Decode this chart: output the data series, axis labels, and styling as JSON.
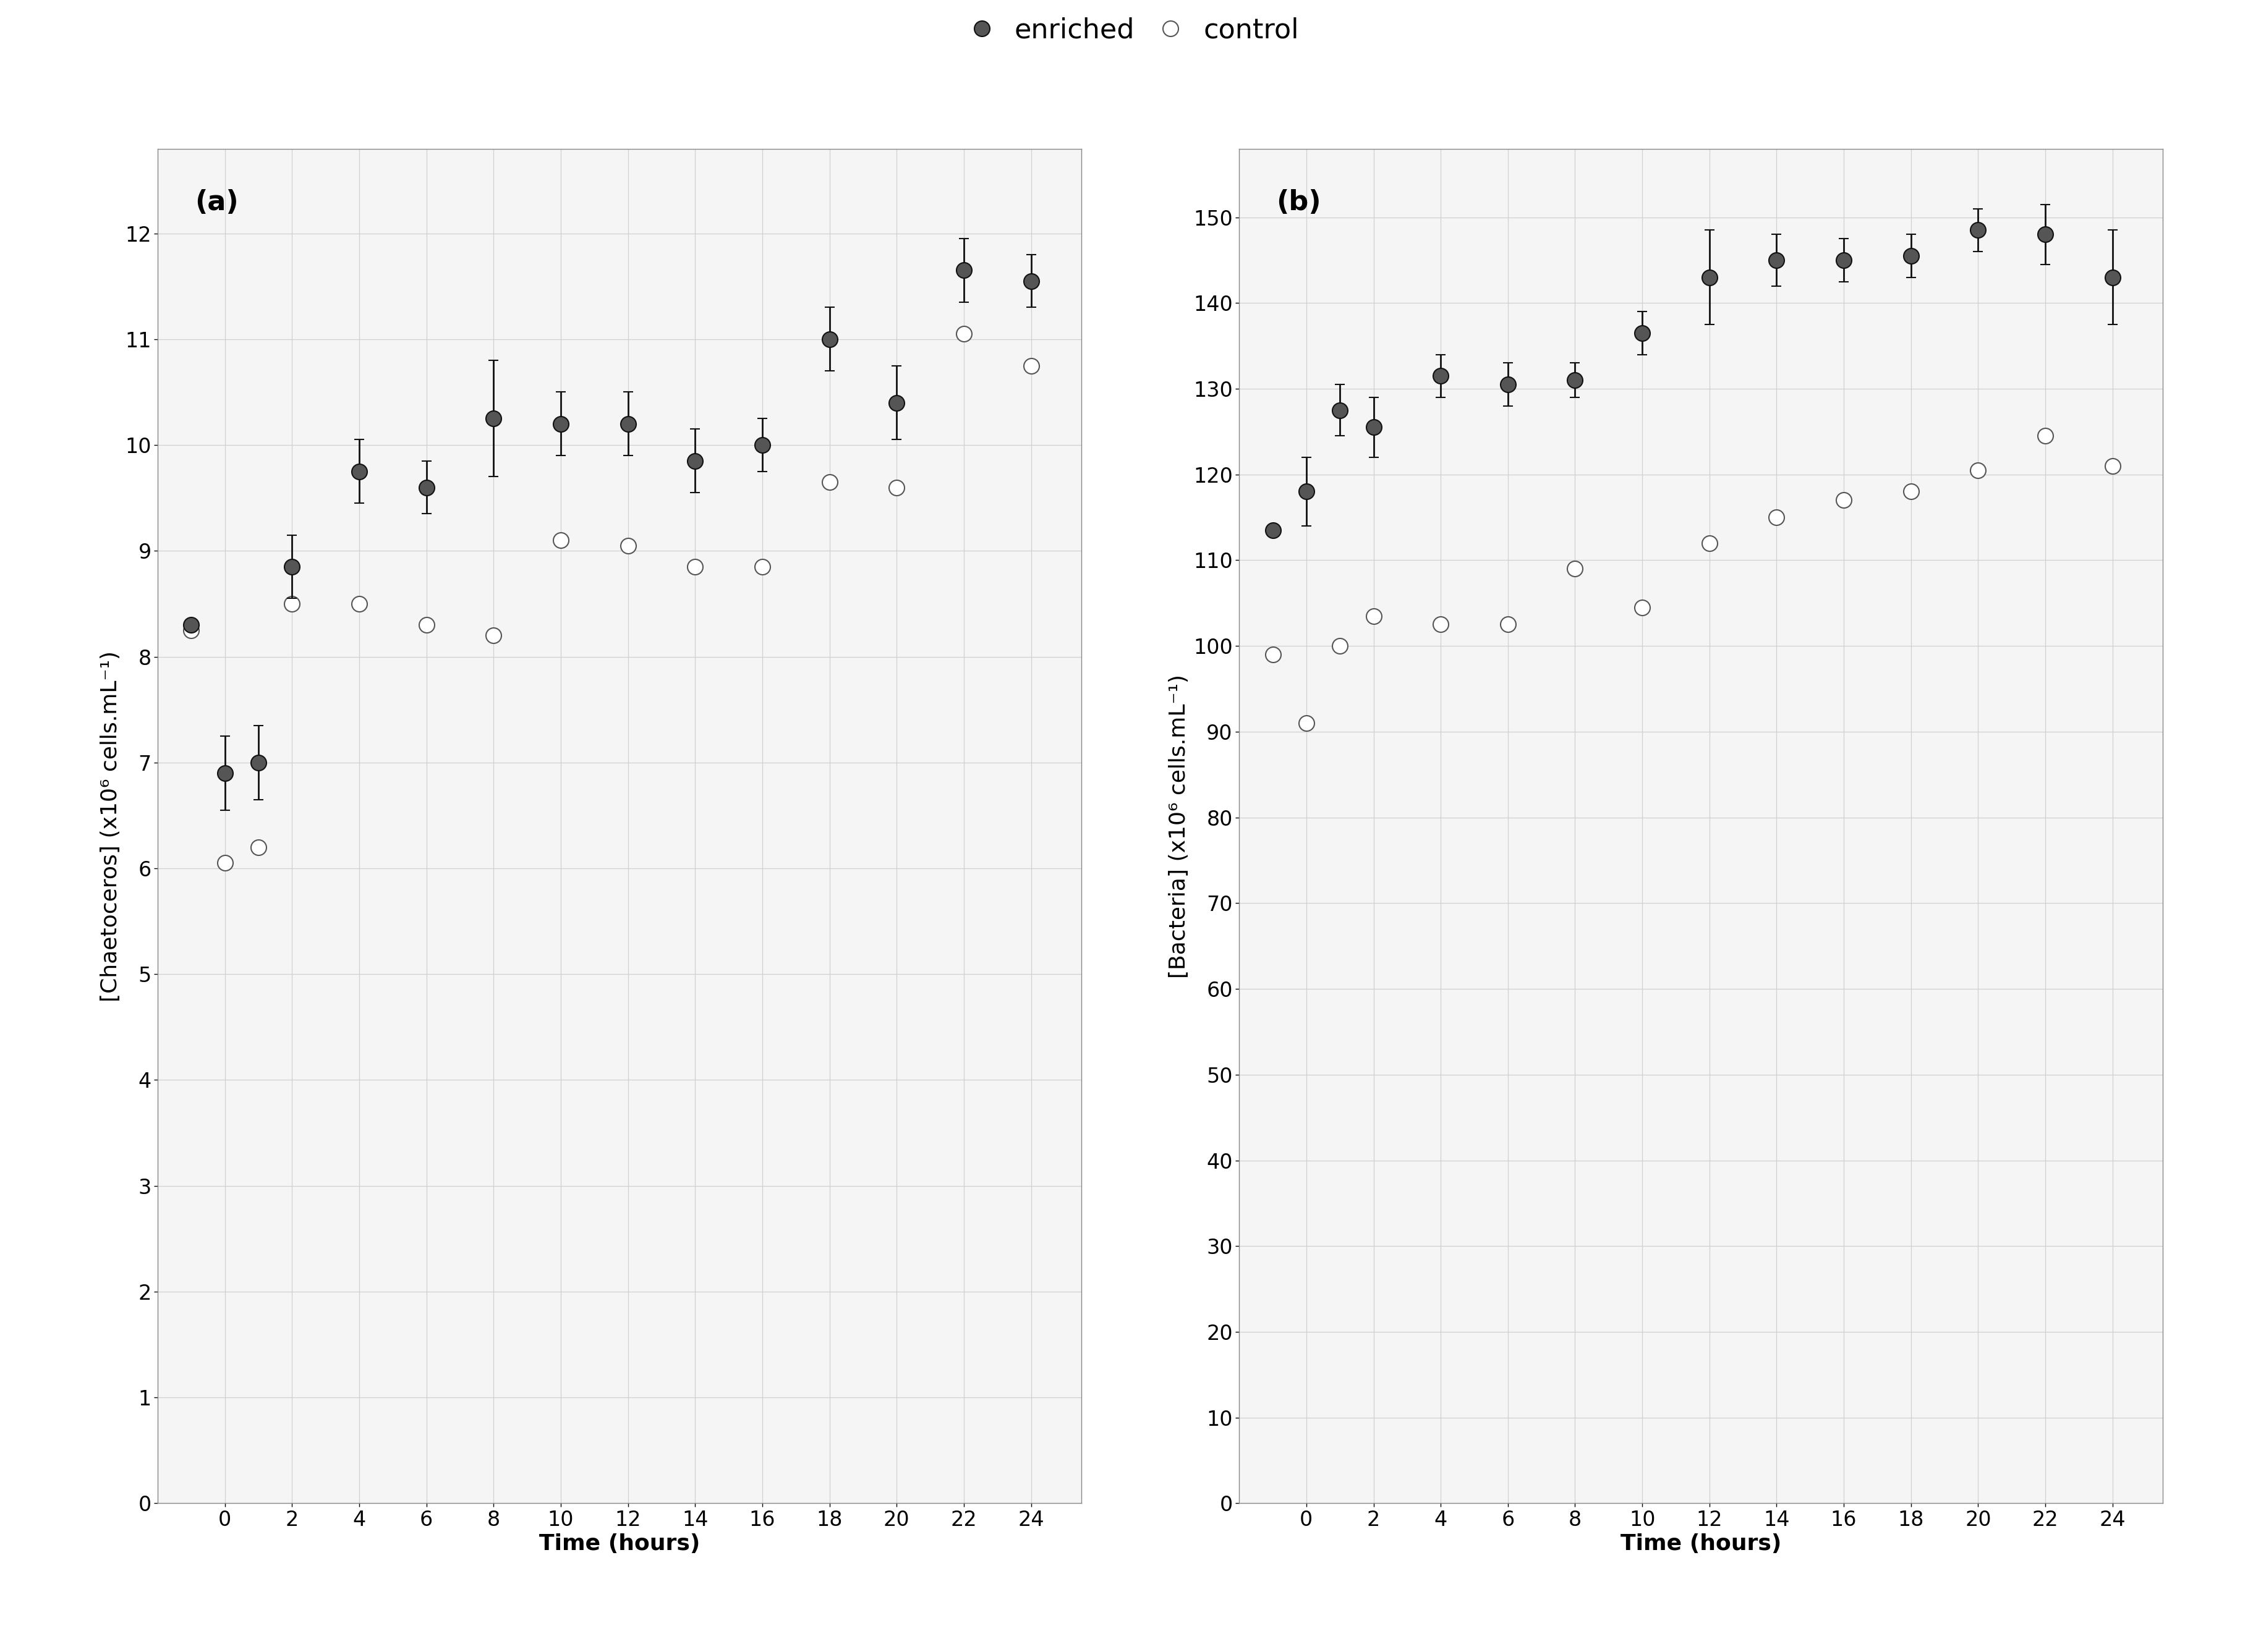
{
  "panel_a": {
    "title": "(a)",
    "ylabel": "[Chaetoceros] (x10⁶ cells.mL⁻¹)",
    "xlabel": "Time (hours)",
    "ylim": [
      0,
      12.8
    ],
    "yticks": [
      0,
      1,
      2,
      3,
      4,
      5,
      6,
      7,
      8,
      9,
      10,
      11,
      12
    ],
    "xlim": [
      -2.0,
      25.5
    ],
    "xticks": [
      0,
      2,
      4,
      6,
      8,
      10,
      12,
      14,
      16,
      18,
      20,
      22,
      24
    ],
    "enriched_x": [
      -1,
      0,
      1,
      2,
      4,
      6,
      8,
      10,
      12,
      14,
      16,
      18,
      20,
      22,
      24
    ],
    "enriched_y": [
      8.3,
      6.9,
      7.0,
      8.85,
      9.75,
      9.6,
      10.25,
      10.2,
      10.2,
      9.85,
      10.0,
      11.0,
      10.4,
      11.65,
      11.55
    ],
    "enriched_err": [
      0.0,
      0.35,
      0.35,
      0.3,
      0.3,
      0.25,
      0.55,
      0.3,
      0.3,
      0.3,
      0.25,
      0.3,
      0.35,
      0.3,
      0.25
    ],
    "control_x": [
      -1,
      0,
      1,
      2,
      4,
      6,
      8,
      10,
      12,
      14,
      16,
      18,
      20,
      22,
      24
    ],
    "control_y": [
      8.25,
      6.05,
      6.2,
      8.5,
      8.5,
      8.3,
      8.2,
      9.1,
      9.05,
      8.85,
      8.85,
      9.65,
      9.6,
      11.05,
      10.75
    ],
    "control_err": [
      0.0,
      0.0,
      0.0,
      0.0,
      0.0,
      0.0,
      0.0,
      0.0,
      0.0,
      0.0,
      0.0,
      0.0,
      0.0,
      0.0,
      0.0
    ]
  },
  "panel_b": {
    "title": "(b)",
    "ylabel": "[Bacteria] (x10⁶ cells.mL⁻¹)",
    "xlabel": "Time (hours)",
    "ylim": [
      0,
      158
    ],
    "yticks": [
      0,
      10,
      20,
      30,
      40,
      50,
      60,
      70,
      80,
      90,
      100,
      110,
      120,
      130,
      140,
      150
    ],
    "xlim": [
      -2.0,
      25.5
    ],
    "xticks": [
      0,
      2,
      4,
      6,
      8,
      10,
      12,
      14,
      16,
      18,
      20,
      22,
      24
    ],
    "enriched_x": [
      -1,
      0,
      1,
      2,
      4,
      6,
      8,
      10,
      12,
      14,
      16,
      18,
      20,
      22,
      24
    ],
    "enriched_y": [
      113.5,
      118.0,
      127.5,
      125.5,
      131.5,
      130.5,
      131.0,
      136.5,
      143.0,
      145.0,
      145.0,
      145.5,
      148.5,
      148.0,
      143.0
    ],
    "enriched_err": [
      0.0,
      4.0,
      3.0,
      3.5,
      2.5,
      2.5,
      2.0,
      2.5,
      5.5,
      3.0,
      2.5,
      2.5,
      2.5,
      3.5,
      5.5
    ],
    "control_x": [
      -1,
      0,
      1,
      2,
      4,
      6,
      8,
      10,
      12,
      14,
      16,
      18,
      20,
      22,
      24
    ],
    "control_y": [
      99.0,
      91.0,
      100.0,
      103.5,
      102.5,
      102.5,
      109.0,
      104.5,
      112.0,
      115.0,
      117.0,
      118.0,
      120.5,
      124.5,
      121.0
    ],
    "control_err": [
      0.0,
      0.0,
      0.0,
      0.0,
      0.0,
      0.0,
      0.0,
      0.0,
      0.0,
      0.0,
      0.0,
      0.0,
      0.0,
      0.0,
      0.0
    ]
  },
  "legend_enriched": "enriched",
  "legend_control": "control",
  "enriched_facecolor": "#555555",
  "enriched_edgecolor": "#111111",
  "control_facecolor": "#ffffff",
  "control_edgecolor": "#555555",
  "line_color": "#555555",
  "background_color": "#ffffff",
  "plot_bg_color": "#f5f5f5",
  "grid_color": "#d0d0d0",
  "marker_size": 18,
  "line_width": 1.8,
  "legend_fontsize": 32,
  "axis_label_fontsize": 26,
  "tick_fontsize": 24,
  "panel_label_fontsize": 32,
  "cap_size": 6,
  "elinewidth": 2.0,
  "markeredgewidth": 1.5
}
